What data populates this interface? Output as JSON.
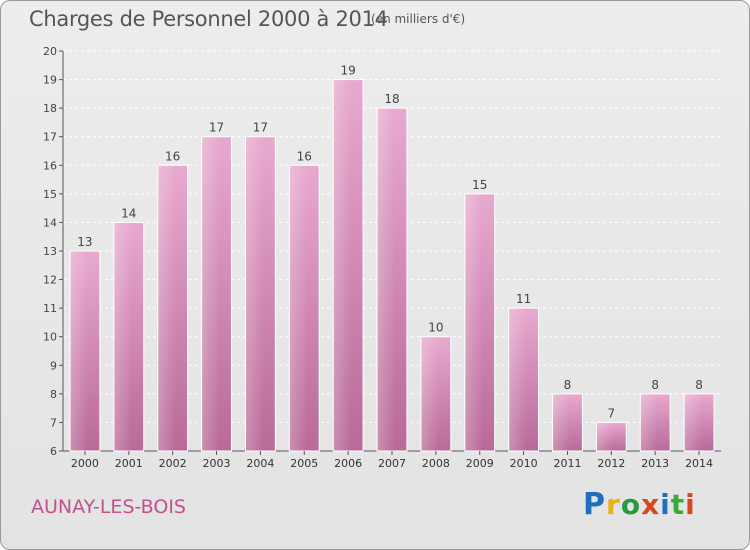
{
  "header": {
    "title": "Charges de Personnel 2000 à 2014",
    "subtitle": "(en milliers d'€)"
  },
  "footer": {
    "place": "AUNAY-LES-BOIS",
    "logo_text": "Proxiti"
  },
  "colors": {
    "bar_top": "#e8a9cf",
    "bar_bottom": "#b86a98",
    "accent": "#c0508e",
    "logo_letters": [
      "#1f6fbd",
      "#e8b21a",
      "#2a9a3a",
      "#d8481f",
      "#1f6fbd",
      "#3aaa3a",
      "#d8481f"
    ]
  },
  "chart_data": {
    "type": "bar",
    "categories": [
      "2000",
      "2001",
      "2002",
      "2003",
      "2004",
      "2005",
      "2006",
      "2007",
      "2008",
      "2009",
      "2010",
      "2011",
      "2012",
      "2013",
      "2014"
    ],
    "values": [
      13,
      14,
      16,
      17,
      17,
      16,
      19,
      18,
      10,
      15,
      11,
      8,
      7,
      8,
      8
    ],
    "title": "Charges de Personnel 2000 à 2014",
    "subtitle": "(en milliers d'€)",
    "ylim": [
      6,
      20
    ],
    "yticks": [
      6,
      7,
      8,
      9,
      10,
      11,
      12,
      13,
      14,
      15,
      16,
      17,
      18,
      19,
      20
    ],
    "grid": true,
    "data_labels": true
  }
}
